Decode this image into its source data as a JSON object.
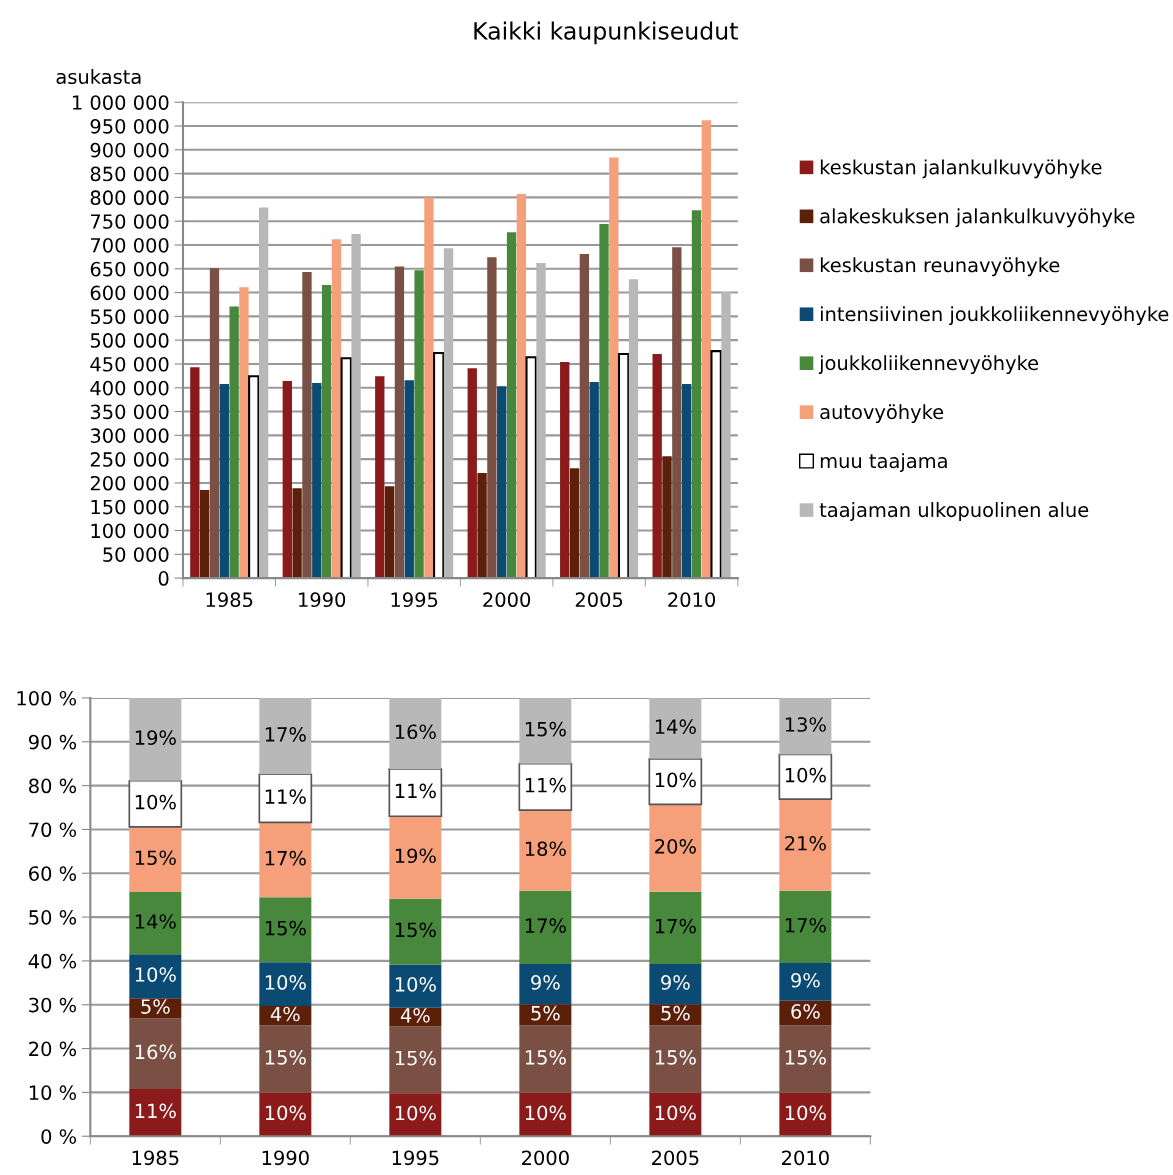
{
  "chart_data": [
    {
      "type": "bar",
      "title": "Kaikki kaupunkiseudut",
      "ylabel": "asukasta",
      "categories": [
        "1985",
        "1990",
        "1995",
        "2000",
        "2005",
        "2010"
      ],
      "series": [
        {
          "name": "keskustan jalankulkuvyöhyke",
          "color": "#8b1a1a",
          "values": [
            443000,
            414000,
            424000,
            441000,
            454000,
            471000
          ]
        },
        {
          "name": "alakeskuksen jalankulkuvyöhyke",
          "color": "#5c1f0a",
          "values": [
            185000,
            189000,
            193000,
            221000,
            231000,
            256000
          ]
        },
        {
          "name": "keskustan reunavyöhyke",
          "color": "#7a5045",
          "values": [
            651000,
            643000,
            655000,
            674000,
            681000,
            695000
          ]
        },
        {
          "name": "intensiivinen joukkoliikennevyöhyke",
          "color": "#0b4a72",
          "values": [
            408000,
            410000,
            416000,
            403000,
            412000,
            408000
          ]
        },
        {
          "name": "joukkoliikennevyöhyke",
          "color": "#47883c",
          "values": [
            571000,
            616000,
            647000,
            727000,
            744000,
            773000
          ]
        },
        {
          "name": "autovyöhyke",
          "color": "#f5a07a",
          "values": [
            611000,
            712000,
            800000,
            807000,
            884000,
            962000
          ]
        },
        {
          "name": "muu taajama",
          "color": "#ffffff",
          "values": [
            424000,
            462000,
            473000,
            464000,
            471000,
            477000
          ]
        },
        {
          "name": "taajaman ulkopuolinen alue",
          "color": "#b8b8b8",
          "values": [
            779000,
            723000,
            693000,
            662000,
            628000,
            601000
          ]
        }
      ],
      "ylim": [
        0,
        1000000
      ],
      "yticks": [
        {
          "value": 0,
          "label": "0"
        },
        {
          "value": 50000,
          "label": "50 000"
        },
        {
          "value": 100000,
          "label": "100 000"
        },
        {
          "value": 150000,
          "label": "150 000"
        },
        {
          "value": 200000,
          "label": "200 000"
        },
        {
          "value": 250000,
          "label": "250 000"
        },
        {
          "value": 300000,
          "label": "300 000"
        },
        {
          "value": 350000,
          "label": "350 000"
        },
        {
          "value": 400000,
          "label": "400 000"
        },
        {
          "value": 450000,
          "label": "450 000"
        },
        {
          "value": 500000,
          "label": "500 000"
        },
        {
          "value": 550000,
          "label": "550 000"
        },
        {
          "value": 600000,
          "label": "600 000"
        },
        {
          "value": 650000,
          "label": "650 000"
        },
        {
          "value": 700000,
          "label": "700 000"
        },
        {
          "value": 750000,
          "label": "750 000"
        },
        {
          "value": 800000,
          "label": "800 000"
        },
        {
          "value": 850000,
          "label": "850 000"
        },
        {
          "value": 900000,
          "label": "900 000"
        },
        {
          "value": 950000,
          "label": "950 000"
        },
        {
          "value": 1000000,
          "label": "1 000 000"
        }
      ],
      "grid": "y",
      "legend": "right"
    },
    {
      "type": "bar",
      "stacked": true,
      "categories": [
        "1985",
        "1990",
        "1995",
        "2000",
        "2005",
        "2010"
      ],
      "series": [
        {
          "color": "#8b1a1a",
          "values": [
            10.8,
            9.9,
            9.8,
            9.9,
            9.9,
            9.9
          ],
          "value_labels": [
            "11%",
            "10%",
            "10%",
            "10%",
            "10%",
            "10%"
          ]
        },
        {
          "color": "#7a5045",
          "values": [
            16.1,
            15.4,
            15.3,
            15.4,
            15.4,
            15.4
          ],
          "value_labels": [
            "16%",
            "15%",
            "15%",
            "15%",
            "15%",
            "15%"
          ]
        },
        {
          "color": "#5c1f0a",
          "values": [
            4.6,
            4.4,
            4.2,
            4.8,
            4.8,
            5.6
          ],
          "value_labels": [
            "5%",
            "4%",
            "4%",
            "5%",
            "5%",
            "6%"
          ]
        },
        {
          "color": "#0b4a72",
          "values": [
            10.0,
            10.0,
            9.9,
            9.2,
            9.2,
            8.6
          ],
          "value_labels": [
            "10%",
            "10%",
            "10%",
            "9%",
            "9%",
            "9%"
          ]
        },
        {
          "color": "#47883c",
          "values": [
            14.2,
            14.8,
            15.0,
            16.7,
            16.5,
            16.5
          ],
          "value_labels": [
            "14%",
            "15%",
            "15%",
            "17%",
            "17%",
            "17%"
          ]
        },
        {
          "color": "#f5a07a",
          "values": [
            14.9,
            17.1,
            18.8,
            18.4,
            19.9,
            20.9
          ],
          "value_labels": [
            "15%",
            "17%",
            "19%",
            "18%",
            "20%",
            "21%"
          ]
        },
        {
          "color": "#ffffff",
          "values": [
            10.5,
            11.0,
            10.8,
            10.6,
            10.4,
            10.2
          ],
          "value_labels": [
            "10%",
            "11%",
            "11%",
            "11%",
            "10%",
            "10%"
          ]
        },
        {
          "color": "#b8b8b8",
          "values": [
            18.9,
            17.4,
            16.2,
            15.0,
            13.9,
            12.9
          ],
          "value_labels": [
            "19%",
            "17%",
            "16%",
            "15%",
            "14%",
            "13%"
          ]
        }
      ],
      "ylim": [
        0,
        100
      ],
      "yticks": [
        {
          "value": 0,
          "label": "0 %"
        },
        {
          "value": 10,
          "label": "10 %"
        },
        {
          "value": 20,
          "label": "20 %"
        },
        {
          "value": 30,
          "label": "30 %"
        },
        {
          "value": 40,
          "label": "40 %"
        },
        {
          "value": 50,
          "label": "50 %"
        },
        {
          "value": 60,
          "label": "60 %"
        },
        {
          "value": 70,
          "label": "70 %"
        },
        {
          "value": 80,
          "label": "80 %"
        },
        {
          "value": 90,
          "label": "90 %"
        },
        {
          "value": 100,
          "label": "100 %"
        }
      ],
      "grid": "y"
    }
  ]
}
